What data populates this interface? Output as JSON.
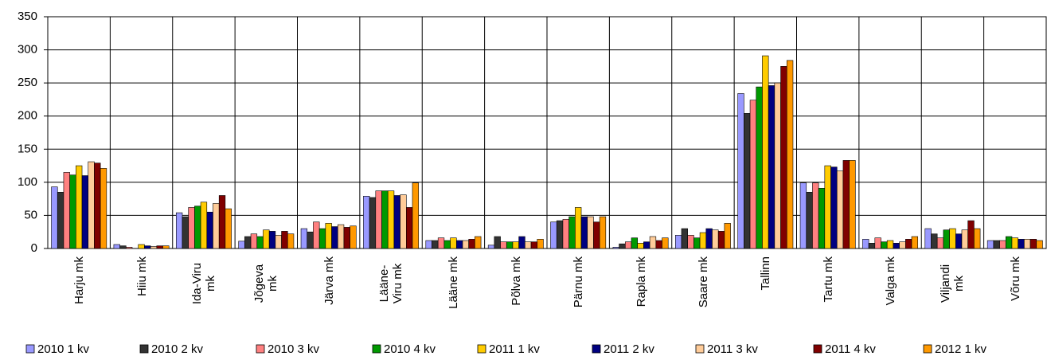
{
  "chart_data": {
    "type": "bar",
    "categories": [
      "Harju mk",
      "Hiiu mk",
      "Ida-Viru mk",
      "Jõgeva mk",
      "Järva mk",
      "Lääne-Viru mk",
      "Lääne mk",
      "Põlva mk",
      "Pärnu mk",
      "Rapla mk",
      "Saare mk",
      "Tallinn",
      "Tartu mk",
      "Valga mk",
      "Viljandi mk",
      "Võru mk"
    ],
    "series": [
      {
        "name": "2010 1 kv",
        "color": "#9999ff",
        "values": [
          93,
          6,
          54,
          11,
          30,
          79,
          12,
          5,
          40,
          2,
          20,
          234,
          99,
          14,
          30,
          12
        ]
      },
      {
        "name": "2010 2 kv",
        "color": "#333333",
        "values": [
          85,
          4,
          48,
          18,
          25,
          77,
          12,
          18,
          42,
          7,
          30,
          204,
          85,
          8,
          22,
          12
        ]
      },
      {
        "name": "2010 3 kv",
        "color": "#ff8080",
        "values": [
          115,
          2,
          62,
          22,
          40,
          87,
          16,
          10,
          44,
          10,
          20,
          224,
          99,
          16,
          16,
          12
        ]
      },
      {
        "name": "2010 4 kv",
        "color": "#009900",
        "values": [
          111,
          0,
          64,
          18,
          30,
          87,
          12,
          10,
          48,
          16,
          16,
          244,
          91,
          10,
          28,
          18
        ]
      },
      {
        "name": "2011 1 kv",
        "color": "#ffcc00",
        "values": [
          125,
          6,
          70,
          28,
          38,
          87,
          16,
          10,
          62,
          8,
          24,
          291,
          125,
          12,
          30,
          16
        ]
      },
      {
        "name": "2011 2 kv",
        "color": "#000080",
        "values": [
          110,
          4,
          55,
          26,
          33,
          80,
          12,
          18,
          48,
          10,
          30,
          246,
          123,
          8,
          22,
          14
        ]
      },
      {
        "name": "2011 3 kv",
        "color": "#ffcc99",
        "values": [
          131,
          3,
          68,
          20,
          36,
          81,
          12,
          10,
          48,
          18,
          28,
          250,
          117,
          10,
          28,
          14
        ]
      },
      {
        "name": "2011 4 kv",
        "color": "#800000",
        "values": [
          129,
          4,
          80,
          26,
          32,
          62,
          14,
          10,
          40,
          12,
          26,
          275,
          133,
          14,
          42,
          14
        ]
      },
      {
        "name": "2012 1 kv",
        "color": "#ff9900",
        "values": [
          121,
          4,
          60,
          22,
          34,
          99,
          18,
          14,
          48,
          16,
          38,
          284,
          133,
          18,
          30,
          12
        ]
      }
    ],
    "ylim": [
      0,
      350
    ],
    "yticks": [
      0,
      50,
      100,
      150,
      200,
      250,
      300,
      350
    ],
    "grid": true,
    "legend": "bottom"
  }
}
